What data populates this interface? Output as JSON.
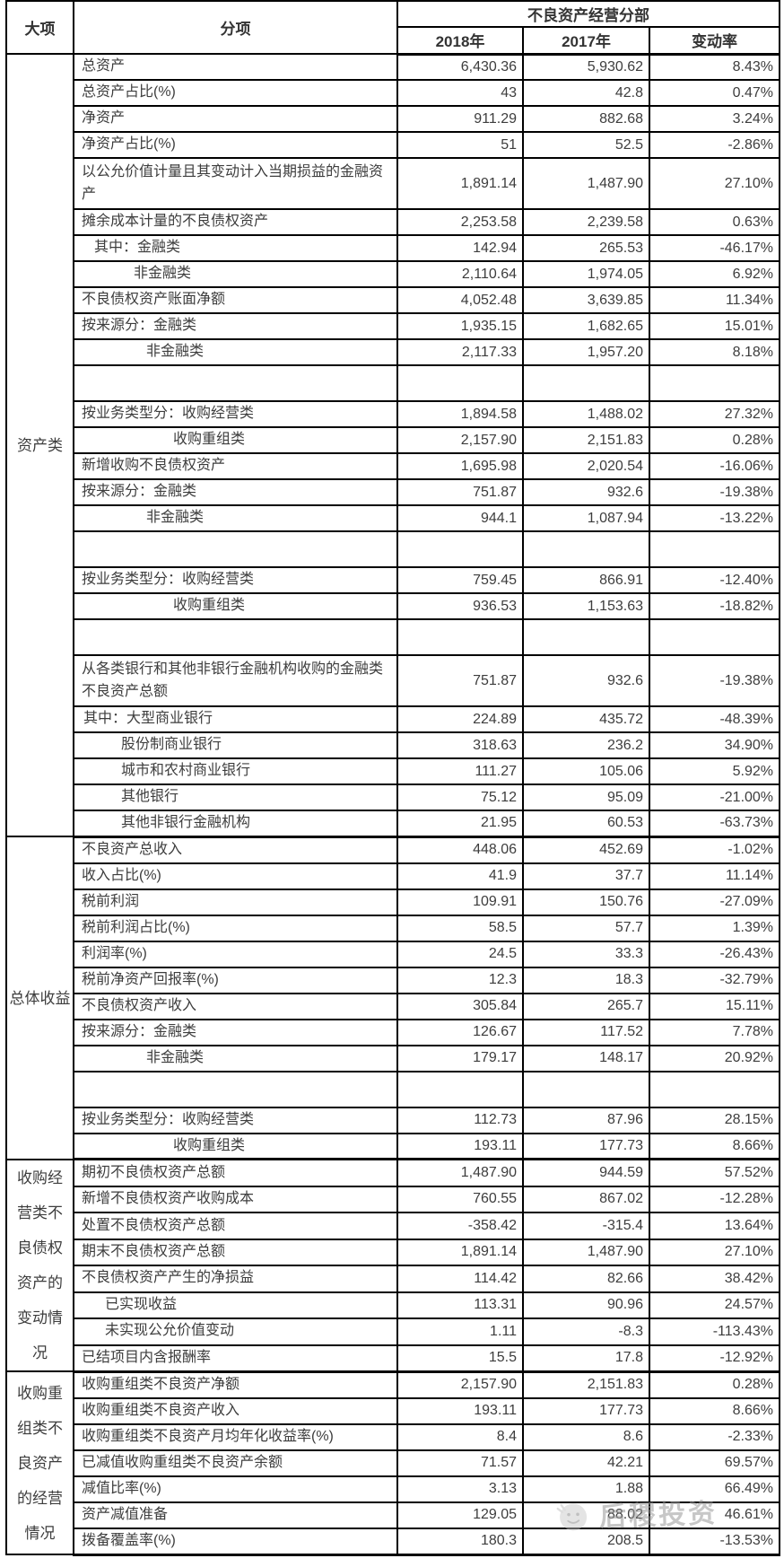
{
  "watermark": {
    "text": "后稷投资",
    "icon": "smiley-face"
  },
  "chart_data": {
    "type": "table",
    "title": "不良资产经营分部",
    "header": {
      "col_major": "大项",
      "col_sub": "分项",
      "group_header": "不良资产经营分部",
      "col_2018": "2018年",
      "col_2017": "2017年",
      "col_change": "变动率"
    },
    "columns": [
      "大项",
      "分项",
      "2018年",
      "2017年",
      "变动率"
    ],
    "groups": [
      {
        "label": "资产类",
        "label_lines": [
          "资产类"
        ],
        "rows": [
          {
            "label": "总资产",
            "y2018": "6,430.36",
            "y2017": "5,930.62",
            "change": "8.43%",
            "indent": 0
          },
          {
            "label": "总资产占比(%)",
            "y2018": "43",
            "y2017": "42.8",
            "change": "0.47%",
            "indent": 0
          },
          {
            "label": "净资产",
            "y2018": "911.29",
            "y2017": "882.68",
            "change": "3.24%",
            "indent": 0
          },
          {
            "label": "净资产占比(%)",
            "y2018": "51",
            "y2017": "52.5",
            "change": "-2.86%",
            "indent": 0
          },
          {
            "label": "以公允价值计量且其变动计入当期损益的金融资产",
            "y2018": "1,891.14",
            "y2017": "1,487.90",
            "change": "27.10%",
            "indent": 0,
            "tall": true
          },
          {
            "label": "摊余成本计量的不良债权资产",
            "y2018": "2,253.58",
            "y2017": "2,239.58",
            "change": "0.63%",
            "indent": 0
          },
          {
            "label": "其中：金融类",
            "y2018": "142.94",
            "y2017": "265.53",
            "change": "-46.17%",
            "indent": 14
          },
          {
            "label": "非金融类",
            "y2018": "2,110.64",
            "y2017": "1,974.05",
            "change": "6.92%",
            "indent": 58
          },
          {
            "label": "不良债权资产账面净额",
            "y2018": "4,052.48",
            "y2017": "3,639.85",
            "change": "11.34%",
            "indent": 0
          },
          {
            "label": "按来源分：金融类",
            "y2018": "1,935.15",
            "y2017": "1,682.65",
            "change": "15.01%",
            "indent": 0
          },
          {
            "label": "非金融类",
            "y2018": "2,117.33",
            "y2017": "1,957.20",
            "change": "8.18%",
            "indent": 72
          },
          {
            "empty": true
          },
          {
            "label": "按业务类型分：收购经营类",
            "y2018": "1,894.58",
            "y2017": "1,488.02",
            "change": "27.32%",
            "indent": 0
          },
          {
            "label": "收购重组类",
            "y2018": "2,157.90",
            "y2017": "2,151.83",
            "change": "0.28%",
            "indent": 102
          },
          {
            "label": "新增收购不良债权资产",
            "y2018": "1,695.98",
            "y2017": "2,020.54",
            "change": "-16.06%",
            "indent": 0
          },
          {
            "label": "按来源分：金融类",
            "y2018": "751.87",
            "y2017": "932.6",
            "change": "-19.38%",
            "indent": 0
          },
          {
            "label": "非金融类",
            "y2018": "944.1",
            "y2017": "1,087.94",
            "change": "-13.22%",
            "indent": 72
          },
          {
            "empty": true
          },
          {
            "label": "按业务类型分：收购经营类",
            "y2018": "759.45",
            "y2017": "866.91",
            "change": "-12.40%",
            "indent": 0
          },
          {
            "label": "收购重组类",
            "y2018": "936.53",
            "y2017": "1,153.63",
            "change": "-18.82%",
            "indent": 102
          },
          {
            "empty": true
          },
          {
            "label": "从各类银行和其他非银行金融机构收购的金融类不良资产总额",
            "y2018": "751.87",
            "y2017": "932.6",
            "change": "-19.38%",
            "indent": 0,
            "tall": true
          },
          {
            "label": "其中：大型商业银行",
            "y2018": "224.89",
            "y2017": "435.72",
            "change": "-48.39%",
            "indent": 2
          },
          {
            "label": "股份制商业银行",
            "y2018": "318.63",
            "y2017": "236.2",
            "change": "34.90%",
            "indent": 44
          },
          {
            "label": "城市和农村商业银行",
            "y2018": "111.27",
            "y2017": "105.06",
            "change": "5.92%",
            "indent": 44
          },
          {
            "label": "其他银行",
            "y2018": "75.12",
            "y2017": "95.09",
            "change": "-21.00%",
            "indent": 44
          },
          {
            "label": "其他非银行金融机构",
            "y2018": "21.95",
            "y2017": "60.53",
            "change": "-63.73%",
            "indent": 44
          }
        ]
      },
      {
        "label": "总体收益",
        "label_lines": [
          "总体收益"
        ],
        "rows": [
          {
            "label": "不良资产总收入",
            "y2018": "448.06",
            "y2017": "452.69",
            "change": "-1.02%",
            "indent": 0
          },
          {
            "label": "收入占比(%)",
            "y2018": "41.9",
            "y2017": "37.7",
            "change": "11.14%",
            "indent": 0
          },
          {
            "label": "税前利润",
            "y2018": "109.91",
            "y2017": "150.76",
            "change": "-27.09%",
            "indent": 0
          },
          {
            "label": "税前利润占比(%)",
            "y2018": "58.5",
            "y2017": "57.7",
            "change": "1.39%",
            "indent": 0
          },
          {
            "label": "利润率(%)",
            "y2018": "24.5",
            "y2017": "33.3",
            "change": "-26.43%",
            "indent": 0
          },
          {
            "label": "税前净资产回报率(%)",
            "y2018": "12.3",
            "y2017": "18.3",
            "change": "-32.79%",
            "indent": 0
          },
          {
            "label": "不良债权资产收入",
            "y2018": "305.84",
            "y2017": "265.7",
            "change": "15.11%",
            "indent": 0
          },
          {
            "label": "按来源分：金融类",
            "y2018": "126.67",
            "y2017": "117.52",
            "change": "7.78%",
            "indent": 0
          },
          {
            "label": "非金融类",
            "y2018": "179.17",
            "y2017": "148.17",
            "change": "20.92%",
            "indent": 72
          },
          {
            "empty": true
          },
          {
            "label": "按业务类型分：收购经营类",
            "y2018": "112.73",
            "y2017": "87.96",
            "change": "28.15%",
            "indent": 0
          },
          {
            "label": "收购重组类",
            "y2018": "193.11",
            "y2017": "177.73",
            "change": "8.66%",
            "indent": 102
          }
        ]
      },
      {
        "label": "收购经营类不良债权资产的变动情况",
        "label_lines": [
          "收购经",
          "营类不",
          "良债权",
          "资产的",
          "变动情",
          "况"
        ],
        "rows": [
          {
            "label": "期初不良债权资产总额",
            "y2018": "1,487.90",
            "y2017": "944.59",
            "change": "57.52%",
            "indent": 0
          },
          {
            "label": "新增不良债权资产收购成本",
            "y2018": "760.55",
            "y2017": "867.02",
            "change": "-12.28%",
            "indent": 0
          },
          {
            "label": "处置不良债权资产总额",
            "y2018": "-358.42",
            "y2017": "-315.4",
            "change": "13.64%",
            "indent": 0
          },
          {
            "label": "期末不良债权资产总额",
            "y2018": "1,891.14",
            "y2017": "1,487.90",
            "change": "27.10%",
            "indent": 0
          },
          {
            "label": "不良债权资产产生的净损益",
            "y2018": "114.42",
            "y2017": "82.66",
            "change": "38.42%",
            "indent": 0
          },
          {
            "label": "已实现收益",
            "y2018": "113.31",
            "y2017": "90.96",
            "change": "24.57%",
            "indent": 26
          },
          {
            "label": "未实现公允价值变动",
            "y2018": "1.11",
            "y2017": "-8.3",
            "change": "-113.43%",
            "indent": 26
          },
          {
            "label": "已结项目内含报酬率",
            "y2018": "15.5",
            "y2017": "17.8",
            "change": "-12.92%",
            "indent": 0
          }
        ]
      },
      {
        "label": "收购重组类不良资产的经营情况",
        "label_lines": [
          "收购重",
          "组类不",
          "良资产",
          "的经营",
          "情况"
        ],
        "rows": [
          {
            "label": "收购重组类不良资产净额",
            "y2018": "2,157.90",
            "y2017": "2,151.83",
            "change": "0.28%",
            "indent": 0
          },
          {
            "label": "收购重组类不良资产收入",
            "y2018": "193.11",
            "y2017": "177.73",
            "change": "8.66%",
            "indent": 0
          },
          {
            "label": "收购重组类不良资产月均年化收益率(%)",
            "y2018": "8.4",
            "y2017": "8.6",
            "change": "-2.33%",
            "indent": 0
          },
          {
            "label": "已减值收购重组类不良资产余额",
            "y2018": "71.57",
            "y2017": "42.21",
            "change": "69.57%",
            "indent": 0
          },
          {
            "label": "减值比率(%)",
            "y2018": "3.13",
            "y2017": "1.88",
            "change": "66.49%",
            "indent": 0
          },
          {
            "label": "资产减值准备",
            "y2018": "129.05",
            "y2017": "88.02",
            "change": "46.61%",
            "indent": 0
          },
          {
            "label": "拨备覆盖率(%)",
            "y2018": "180.3",
            "y2017": "208.5",
            "change": "-13.53%",
            "indent": 0
          }
        ]
      }
    ]
  }
}
